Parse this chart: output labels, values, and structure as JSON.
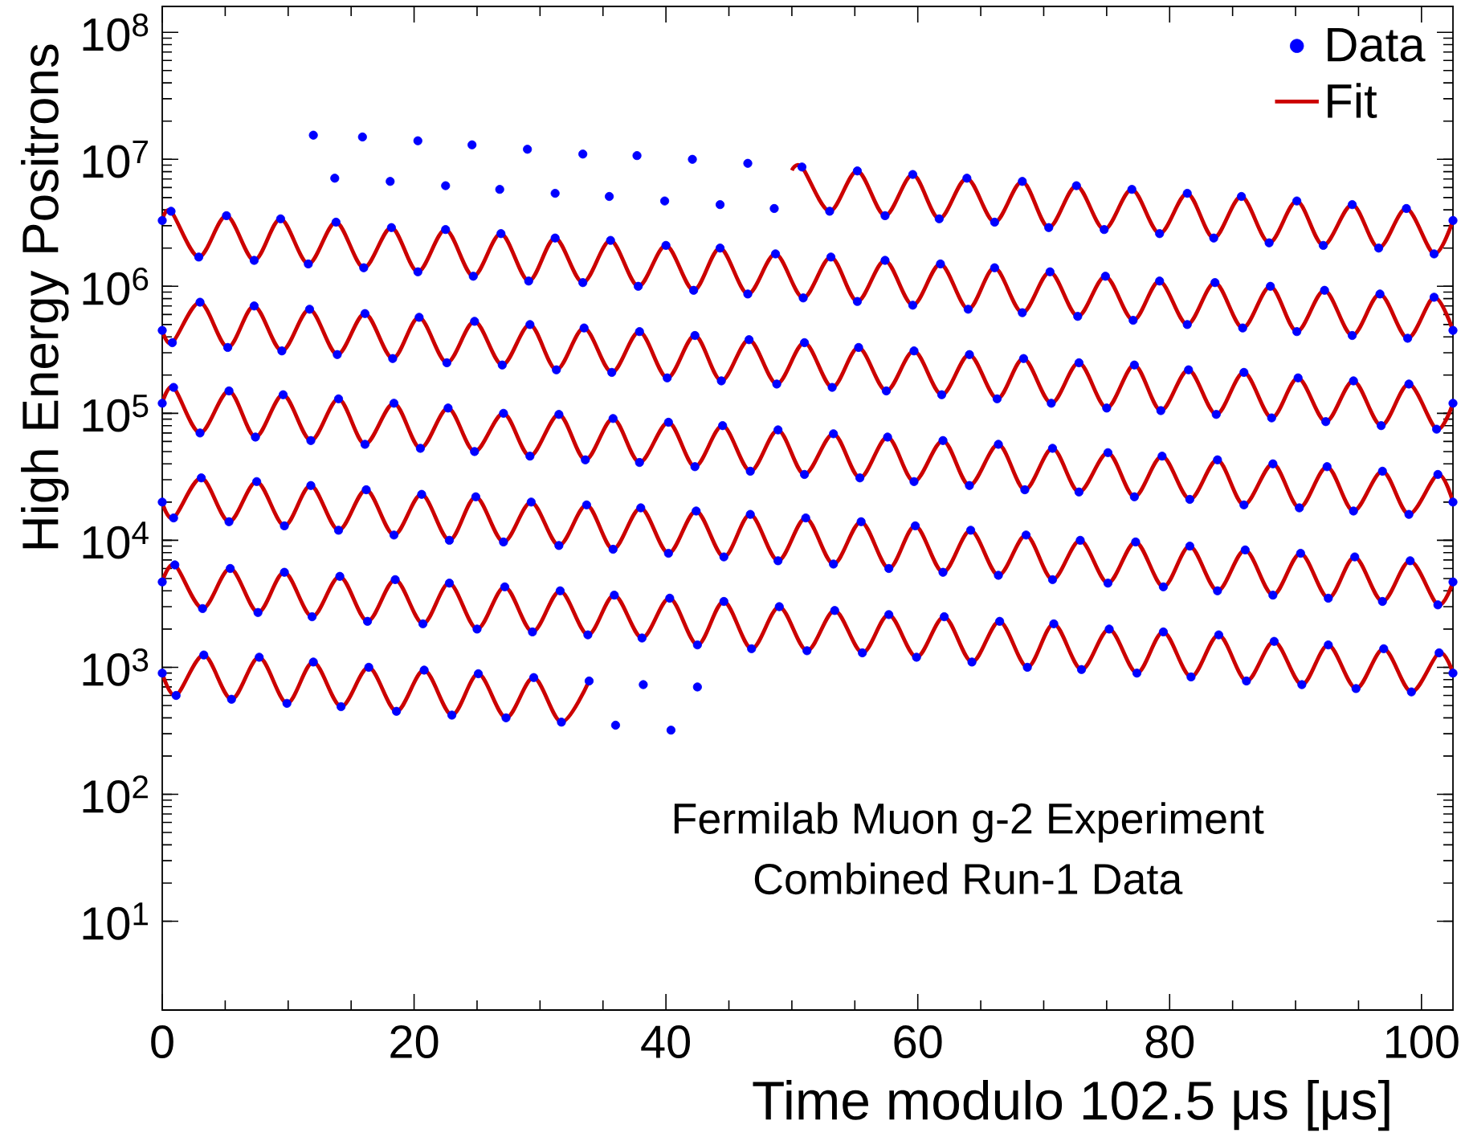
{
  "chart_data": {
    "type": "line",
    "xlabel": "Time modulo 102.5 μs [μs]",
    "ylabel": "High Energy Positrons",
    "annotations": [
      "Fermilab Muon g-2 Experiment",
      "Combined Run-1 Data"
    ],
    "xlim": [
      0,
      102.5
    ],
    "ylim": [
      2,
      160000000.0
    ],
    "log": "y",
    "legend": "top right",
    "xticks": [
      0,
      20,
      40,
      60,
      80,
      100
    ],
    "yticks": [
      {
        "value": 10,
        "label": "10$^{1}$"
      },
      {
        "value": 100,
        "label": "10$^{2}$"
      },
      {
        "value": 1000,
        "label": "10$^{3}$"
      },
      {
        "value": 10000,
        "label": "10$^{4}$"
      },
      {
        "value": 100000,
        "label": "10$^{5}$"
      },
      {
        "value": 1000000,
        "label": "10$^{6}$"
      },
      {
        "value": 10000000,
        "label": "10$^{7}$"
      },
      {
        "value": 100000000,
        "label": "10$^{8}$"
      }
    ],
    "series": [
      {
        "name": "Data",
        "type": "scatter",
        "marker": "circle",
        "color": "#0000ff",
        "x": [
          12.0,
          13.7,
          15.9,
          18.1,
          20.3,
          22.5,
          24.6,
          26.8,
          29.0,
          31.2,
          33.4,
          35.5,
          37.7,
          39.9,
          42.1,
          44.3,
          46.5,
          48.6,
          50.8,
          53.0,
          55.2,
          57.4,
          59.6,
          61.7,
          63.9,
          66.1,
          68.3,
          70.4,
          72.6,
          74.8,
          77.0,
          79.2,
          81.4,
          83.5,
          85.7,
          87.9,
          90.1,
          92.2,
          94.5,
          96.6,
          98.8,
          101.0,
          102.5
        ],
        "values": [
          15500000.0,
          7100000.0,
          15000000.0,
          6700000.0,
          14000000.0,
          6200000.0,
          13000000.0,
          5800000.0,
          12000000.0,
          5400000.0,
          11000000.0,
          5100000.0,
          10700000.0,
          4700000.0,
          10000000.0,
          4400000.0,
          9300000.0,
          4100000.0,
          8700000.0,
          3900000.0,
          8100000.0,
          3600000.0,
          7600000.0,
          3400000.0,
          7100000.0,
          3200000.0,
          6700000.0,
          2900000.0,
          6200000.0,
          2800000.0,
          5800000.0,
          2600000.0,
          5400000.0,
          2400000.0,
          5100000.0,
          2200000.0,
          4700000.0,
          2100000.0,
          4400000.0,
          2000000.0,
          4100000.0,
          1800000.0,
          3300000.0
        ]
      },
      {
        "type": "scatter",
        "marker": "circle",
        "color": "#0000ff",
        "x": [
          0.0,
          0.7,
          2.9,
          5.1,
          7.3,
          9.4,
          11.6,
          13.8,
          16.0,
          18.2,
          20.3,
          22.5,
          24.7,
          26.9,
          29.1,
          31.2,
          33.4,
          35.6,
          37.8,
          40.0,
          42.2,
          44.3,
          46.5,
          48.7,
          50.9,
          53.1,
          55.2,
          57.4,
          59.6,
          61.8,
          64.0,
          66.1,
          68.3,
          70.5,
          72.7,
          74.9,
          77.1,
          79.2,
          81.4,
          83.6,
          85.8,
          88.0,
          90.1,
          92.3,
          94.5,
          96.7,
          98.9,
          101.0,
          102.5
        ],
        "values": [
          3300000.0,
          3900000.0,
          1700000.0,
          3600000.0,
          1600000.0,
          3400000.0,
          1500000.0,
          3200000.0,
          1400000.0,
          2900000.0,
          1300000.0,
          2800000.0,
          1200000.0,
          2600000.0,
          1100000.0,
          2400000.0,
          1070000.0,
          2300000.0,
          1000000.0,
          2100000.0,
          930000.0,
          2000000.0,
          870000.0,
          1800000.0,
          810000.0,
          1700000.0,
          760000.0,
          1600000.0,
          710000.0,
          1500000.0,
          660000.0,
          1400000.0,
          620000.0,
          1300000.0,
          580000.0,
          1200000.0,
          540000.0,
          1100000.0,
          500000.0,
          1070000.0,
          470000.0,
          1000000.0,
          440000.0,
          930000.0,
          410000.0,
          870000.0,
          390000.0,
          820000.0,
          450000.0
        ]
      },
      {
        "type": "scatter",
        "marker": "circle",
        "color": "#0000ff",
        "x": [
          0.0,
          0.8,
          3.0,
          5.2,
          7.3,
          9.5,
          11.7,
          13.9,
          16.1,
          18.3,
          20.4,
          22.6,
          24.8,
          27.0,
          29.2,
          31.3,
          33.5,
          35.7,
          37.9,
          40.1,
          42.3,
          44.4,
          46.6,
          48.8,
          51.0,
          53.2,
          55.3,
          57.5,
          59.7,
          61.9,
          64.1,
          66.3,
          68.4,
          70.6,
          72.8,
          75.0,
          77.2,
          79.3,
          81.5,
          83.7,
          85.9,
          88.1,
          90.2,
          92.4,
          94.6,
          96.8,
          99.0,
          101.2,
          102.5
        ],
        "values": [
          450000.0,
          360000.0,
          750000.0,
          330000.0,
          700000.0,
          310000.0,
          660000.0,
          290000.0,
          610000.0,
          270000.0,
          570000.0,
          250000.0,
          530000.0,
          240000.0,
          500000.0,
          220000.0,
          470000.0,
          210000.0,
          440000.0,
          190000.0,
          410000.0,
          180000.0,
          380000.0,
          170000.0,
          360000.0,
          160000.0,
          330000.0,
          150000.0,
          310000.0,
          140000.0,
          290000.0,
          130000.0,
          270000.0,
          120000.0,
          250000.0,
          110000.0,
          240000.0,
          105000.0,
          220000.0,
          98000.0,
          210000.0,
          92000.0,
          190000.0,
          86000.0,
          180000.0,
          80000.0,
          170000.0,
          75000.0,
          120000.0
        ]
      },
      {
        "type": "scatter",
        "marker": "circle",
        "color": "#0000ff",
        "x": [
          0.0,
          0.9,
          3.0,
          5.3,
          7.4,
          9.6,
          11.8,
          14.0,
          16.1,
          18.4,
          20.5,
          22.7,
          24.8,
          27.1,
          29.2,
          31.5,
          33.6,
          35.8,
          37.9,
          40.2,
          42.3,
          44.5,
          46.7,
          48.9,
          51.0,
          53.3,
          55.4,
          57.6,
          59.7,
          62.0,
          64.1,
          66.4,
          68.5,
          70.7,
          72.8,
          75.1,
          77.2,
          79.4,
          81.6,
          83.8,
          85.9,
          88.2,
          90.3,
          92.5,
          94.6,
          96.9,
          99.0,
          101.3,
          102.5
        ],
        "values": [
          120000.0,
          160000.0,
          70000.0,
          150000.0,
          65000.0,
          140000.0,
          61000.0,
          130000.0,
          57000.0,
          120000.0,
          53000.0,
          110000.0,
          50000.0,
          100000.0,
          46000.0,
          98000.0,
          43000.0,
          91000.0,
          41000.0,
          85000.0,
          38000.0,
          80000.0,
          35000.0,
          74000.0,
          33000.0,
          69000.0,
          31000.0,
          65000.0,
          29000.0,
          61000.0,
          27000.0,
          57000.0,
          25000.0,
          53000.0,
          24000.0,
          49000.0,
          22000.0,
          46000.0,
          21000.0,
          43000.0,
          19000.0,
          40000.0,
          18000.0,
          38000.0,
          17000.0,
          35000.0,
          16000.0,
          33000.0,
          20000.0
        ]
      },
      {
        "type": "scatter",
        "marker": "circle",
        "color": "#0000ff",
        "x": [
          0.0,
          0.9,
          3.1,
          5.3,
          7.5,
          9.7,
          11.8,
          14.0,
          16.2,
          18.4,
          20.6,
          22.8,
          24.9,
          27.1,
          29.3,
          31.5,
          33.7,
          35.8,
          38.0,
          40.2,
          42.4,
          44.6,
          46.7,
          48.9,
          51.1,
          53.3,
          55.5,
          57.7,
          59.8,
          62.0,
          64.2,
          66.4,
          68.6,
          70.7,
          72.9,
          75.1,
          77.3,
          79.5,
          81.6,
          83.8,
          86.0,
          88.2,
          90.4,
          92.6,
          94.7,
          96.9,
          99.1,
          101.3,
          102.5
        ],
        "values": [
          20000.0,
          15000.0,
          31000.0,
          14000.0,
          29000.0,
          13000.0,
          27000.0,
          12000.0,
          25000.0,
          11000.0,
          23000.0,
          10000.0,
          22000.0,
          9700.0,
          20000.0,
          9100.0,
          19000.0,
          8500.0,
          18000.0,
          7900.0,
          17000.0,
          7400.0,
          16000.0,
          6900.0,
          15000.0,
          6500.0,
          14000.0,
          6000.0,
          13000.0,
          5600.0,
          12000.0,
          5300.0,
          11000.0,
          4900.0,
          10000.0,
          4600.0,
          9700.0,
          4300.0,
          9000.0,
          4000.0,
          8400.0,
          3700.0,
          7900.0,
          3500.0,
          7400.0,
          3300.0,
          6900.0,
          3100.0,
          4700.0
        ]
      },
      {
        "type": "scatter",
        "marker": "circle",
        "color": "#0000ff",
        "x": [
          0.0,
          1.0,
          3.2,
          5.4,
          7.6,
          9.7,
          11.9,
          14.1,
          16.3,
          18.5,
          20.7,
          22.8,
          25.0,
          27.2,
          29.4,
          31.6,
          33.8,
          35.9,
          38.1,
          40.3,
          42.5,
          44.6,
          46.8,
          49.0,
          51.2,
          53.4,
          55.6,
          57.7,
          59.9,
          62.1,
          64.3,
          66.5,
          68.7,
          70.8,
          73.0,
          75.2,
          77.4,
          79.5,
          81.7,
          83.9,
          86.1,
          88.3,
          90.5,
          92.6,
          94.8,
          97.0,
          99.2,
          101.4,
          102.5
        ],
        "values": [
          4700.0,
          6400.0,
          2900.0,
          6000.0,
          2700.0,
          5600.0,
          2500.0,
          5200.0,
          2300.0,
          4900.0,
          2200.0,
          4600.0,
          2000.0,
          4300.0,
          1900.0,
          4000.0,
          1800.0,
          3700.0,
          1700.0,
          3500.0,
          1500.0,
          3300.0,
          1400.0,
          3000.0,
          1350.0,
          2800.0,
          1300.0,
          2600.0,
          1200.0,
          2500.0,
          1100.0,
          2300.0,
          1000.0,
          2200.0,
          960.0,
          2000.0,
          900.0,
          1900.0,
          840.0,
          1800.0,
          780.0,
          1600.0,
          730.0,
          1500.0,
          680.0,
          1400.0,
          640.0,
          1300.0,
          900.0
        ]
      },
      {
        "type": "scatter",
        "marker": "circle",
        "color": "#0000ff",
        "x": [
          0.0,
          1.1,
          3.3,
          5.5,
          7.7,
          9.9,
          12.0,
          14.2,
          16.4,
          18.6,
          20.8,
          23.0,
          25.1,
          27.3,
          29.5,
          31.7,
          33.9,
          36.0,
          38.2,
          40.4,
          42.5
        ],
        "values": [
          900.0,
          600.0,
          1250.0,
          560.0,
          1200.0,
          520.0,
          1100.0,
          490.0,
          1000.0,
          450.0,
          950.0,
          420.0,
          890.0,
          400.0,
          830.0,
          370.0,
          780.0,
          350.0,
          730.0,
          320.0,
          700.0
        ]
      },
      {
        "name": "Fit",
        "type": "line",
        "marker": "none",
        "color": "#cc0000",
        "x": [
          50.0,
          50.8,
          53.0,
          55.2,
          57.4,
          59.6,
          61.7,
          63.9,
          66.1,
          68.3,
          70.4,
          72.6,
          74.8,
          77.0,
          79.2,
          81.4,
          83.5,
          85.7,
          87.9,
          90.1,
          92.2,
          94.5,
          96.6,
          98.8,
          101.0,
          102.5
        ],
        "values": [
          8200000.0,
          8700000.0,
          3900000.0,
          8100000.0,
          3600000.0,
          7600000.0,
          3400000.0,
          7100000.0,
          3200000.0,
          6700000.0,
          2900000.0,
          6200000.0,
          2800000.0,
          5800000.0,
          2600000.0,
          5400000.0,
          2400000.0,
          5100000.0,
          2200000.0,
          4700000.0,
          2100000.0,
          4400000.0,
          2000000.0,
          4100000.0,
          1800000.0,
          3300000.0
        ]
      },
      {
        "color": "#cc0000",
        "x": [
          0.0,
          0.7,
          2.9,
          5.1,
          7.3,
          9.4,
          11.6,
          13.8,
          16.0,
          18.2,
          20.3,
          22.5,
          24.7,
          26.9,
          29.1,
          31.2,
          33.4,
          35.6,
          37.8,
          40.0,
          42.2,
          44.3,
          46.5,
          48.7,
          50.9,
          53.1,
          55.2,
          57.4,
          59.6,
          61.8,
          64.0,
          66.1,
          68.3,
          70.5,
          72.7,
          74.9,
          77.1,
          79.2,
          81.4,
          83.6,
          85.8,
          88.0,
          90.1,
          92.3,
          94.5,
          96.7,
          98.9,
          101.0,
          102.5
        ],
        "values": [
          3300000.0,
          3900000.0,
          1700000.0,
          3600000.0,
          1600000.0,
          3400000.0,
          1500000.0,
          3200000.0,
          1400000.0,
          2900000.0,
          1300000.0,
          2800000.0,
          1200000.0,
          2600000.0,
          1100000.0,
          2400000.0,
          1070000.0,
          2300000.0,
          1000000.0,
          2100000.0,
          930000.0,
          2000000.0,
          870000.0,
          1800000.0,
          810000.0,
          1700000.0,
          760000.0,
          1600000.0,
          710000.0,
          1500000.0,
          660000.0,
          1400000.0,
          620000.0,
          1300000.0,
          580000.0,
          1200000.0,
          540000.0,
          1100000.0,
          500000.0,
          1070000.0,
          470000.0,
          1000000.0,
          440000.0,
          930000.0,
          410000.0,
          870000.0,
          390000.0,
          820000.0,
          450000.0
        ]
      },
      {
        "color": "#cc0000",
        "x": [
          0.0,
          0.8,
          3.0,
          5.2,
          7.3,
          9.5,
          11.7,
          13.9,
          16.1,
          18.3,
          20.4,
          22.6,
          24.8,
          27.0,
          29.2,
          31.3,
          33.5,
          35.7,
          37.9,
          40.1,
          42.3,
          44.4,
          46.6,
          48.8,
          51.0,
          53.2,
          55.3,
          57.5,
          59.7,
          61.9,
          64.1,
          66.3,
          68.4,
          70.6,
          72.8,
          75.0,
          77.2,
          79.3,
          81.5,
          83.7,
          85.9,
          88.1,
          90.2,
          92.4,
          94.6,
          96.8,
          99.0,
          101.2,
          102.5
        ],
        "values": [
          450000.0,
          360000.0,
          750000.0,
          330000.0,
          700000.0,
          310000.0,
          660000.0,
          290000.0,
          610000.0,
          270000.0,
          570000.0,
          250000.0,
          530000.0,
          240000.0,
          500000.0,
          220000.0,
          470000.0,
          210000.0,
          440000.0,
          190000.0,
          410000.0,
          180000.0,
          380000.0,
          170000.0,
          360000.0,
          160000.0,
          330000.0,
          150000.0,
          310000.0,
          140000.0,
          290000.0,
          130000.0,
          270000.0,
          120000.0,
          250000.0,
          110000.0,
          240000.0,
          105000.0,
          220000.0,
          98000.0,
          210000.0,
          92000.0,
          190000.0,
          86000.0,
          180000.0,
          80000.0,
          170000.0,
          75000.0,
          120000.0
        ]
      },
      {
        "color": "#cc0000",
        "x": [
          0.0,
          0.9,
          3.0,
          5.3,
          7.4,
          9.6,
          11.8,
          14.0,
          16.1,
          18.4,
          20.5,
          22.7,
          24.8,
          27.1,
          29.2,
          31.5,
          33.6,
          35.8,
          37.9,
          40.2,
          42.3,
          44.5,
          46.7,
          48.9,
          51.0,
          53.3,
          55.4,
          57.6,
          59.7,
          62.0,
          64.1,
          66.4,
          68.5,
          70.7,
          72.8,
          75.1,
          77.2,
          79.4,
          81.6,
          83.8,
          85.9,
          88.2,
          90.3,
          92.5,
          94.6,
          96.9,
          99.0,
          101.3,
          102.5
        ],
        "values": [
          120000.0,
          160000.0,
          70000.0,
          150000.0,
          65000.0,
          140000.0,
          61000.0,
          130000.0,
          57000.0,
          120000.0,
          53000.0,
          110000.0,
          50000.0,
          100000.0,
          46000.0,
          98000.0,
          43000.0,
          91000.0,
          41000.0,
          85000.0,
          38000.0,
          80000.0,
          35000.0,
          74000.0,
          33000.0,
          69000.0,
          31000.0,
          65000.0,
          29000.0,
          61000.0,
          27000.0,
          57000.0,
          25000.0,
          53000.0,
          24000.0,
          49000.0,
          22000.0,
          46000.0,
          21000.0,
          43000.0,
          19000.0,
          40000.0,
          18000.0,
          38000.0,
          17000.0,
          35000.0,
          16000.0,
          33000.0,
          20000.0
        ]
      },
      {
        "color": "#cc0000",
        "x": [
          0.0,
          0.9,
          3.1,
          5.3,
          7.5,
          9.7,
          11.8,
          14.0,
          16.2,
          18.4,
          20.6,
          22.8,
          24.9,
          27.1,
          29.3,
          31.5,
          33.7,
          35.8,
          38.0,
          40.2,
          42.4,
          44.6,
          46.7,
          48.9,
          51.1,
          53.3,
          55.5,
          57.7,
          59.8,
          62.0,
          64.2,
          66.4,
          68.6,
          70.7,
          72.9,
          75.1,
          77.3,
          79.5,
          81.6,
          83.8,
          86.0,
          88.2,
          90.4,
          92.6,
          94.7,
          96.9,
          99.1,
          101.3,
          102.5
        ],
        "values": [
          20000.0,
          15000.0,
          31000.0,
          14000.0,
          29000.0,
          13000.0,
          27000.0,
          12000.0,
          25000.0,
          11000.0,
          23000.0,
          10000.0,
          22000.0,
          9700.0,
          20000.0,
          9100.0,
          19000.0,
          8500.0,
          18000.0,
          7900.0,
          17000.0,
          7400.0,
          16000.0,
          6900.0,
          15000.0,
          6500.0,
          14000.0,
          6000.0,
          13000.0,
          5600.0,
          12000.0,
          5300.0,
          11000.0,
          4900.0,
          10000.0,
          4600.0,
          9700.0,
          4300.0,
          9000.0,
          4000.0,
          8400.0,
          3700.0,
          7900.0,
          3500.0,
          7400.0,
          3300.0,
          6900.0,
          3100.0,
          4700.0
        ]
      },
      {
        "color": "#cc0000",
        "x": [
          0.0,
          1.0,
          3.2,
          5.4,
          7.6,
          9.7,
          11.9,
          14.1,
          16.3,
          18.5,
          20.7,
          22.8,
          25.0,
          27.2,
          29.4,
          31.6,
          33.8,
          35.9,
          38.1,
          40.3,
          42.5,
          44.6,
          46.8,
          49.0,
          51.2,
          53.4,
          55.6,
          57.7,
          59.9,
          62.1,
          64.3,
          66.5,
          68.7,
          70.8,
          73.0,
          75.2,
          77.4,
          79.5,
          81.7,
          83.9,
          86.1,
          88.3,
          90.5,
          92.6,
          94.8,
          97.0,
          99.2,
          101.4,
          102.5
        ],
        "values": [
          4700.0,
          6400.0,
          2900.0,
          6000.0,
          2700.0,
          5600.0,
          2500.0,
          5200.0,
          2300.0,
          4900.0,
          2200.0,
          4600.0,
          2000.0,
          4300.0,
          1900.0,
          4000.0,
          1800.0,
          3700.0,
          1700.0,
          3500.0,
          1500.0,
          3300.0,
          1400.0,
          3000.0,
          1350.0,
          2800.0,
          1300.0,
          2600.0,
          1200.0,
          2500.0,
          1100.0,
          2300.0,
          1000.0,
          2200.0,
          960.0,
          2000.0,
          900.0,
          1900.0,
          840.0,
          1800.0,
          780.0,
          1600.0,
          730.0,
          1500.0,
          680.0,
          1400.0,
          640.0,
          1300.0,
          900.0
        ]
      },
      {
        "color": "#cc0000",
        "x": [
          0.0,
          1.1,
          3.3,
          5.5,
          7.7,
          9.9,
          12.0,
          14.2,
          16.4,
          18.6,
          20.8,
          23.0,
          25.1,
          27.3,
          29.5,
          31.7,
          33.9
        ],
        "values": [
          900.0,
          600.0,
          1250.0,
          560.0,
          1200.0,
          520.0,
          1100.0,
          490.0,
          1000.0,
          450.0,
          950.0,
          420.0,
          890.0,
          400.0,
          830.0,
          370.0,
          780.0
        ]
      }
    ]
  }
}
